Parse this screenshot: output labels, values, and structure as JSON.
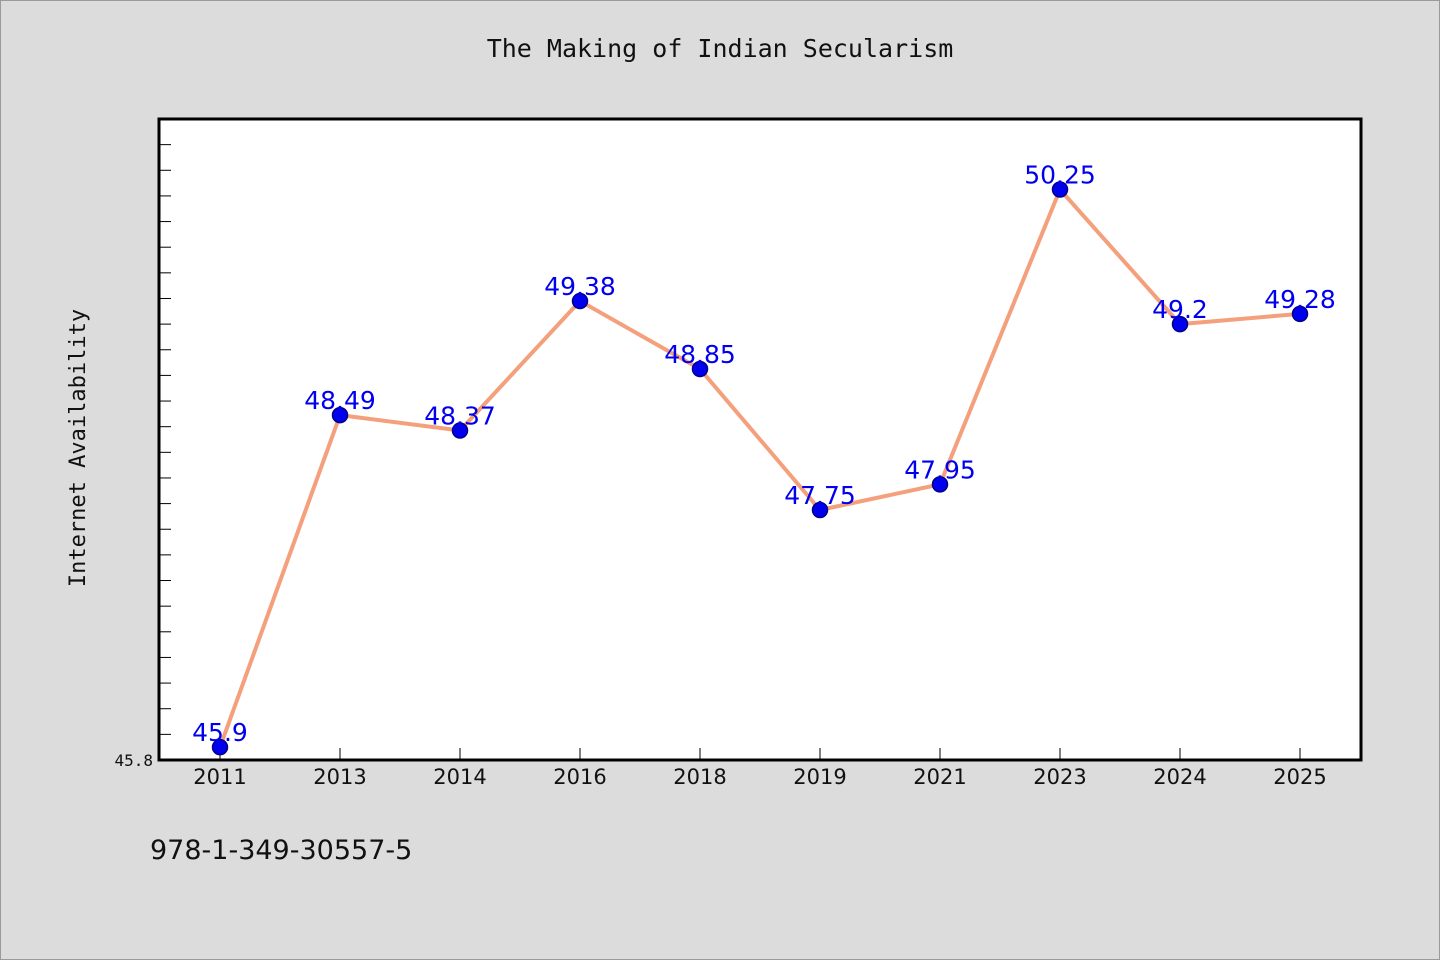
{
  "chart_data": {
    "type": "line",
    "title": "The Making of Indian Secularism",
    "xlabel": "",
    "ylabel": "Internet Availability",
    "categories": [
      "2011",
      "2013",
      "2014",
      "2016",
      "2018",
      "2019",
      "2021",
      "2023",
      "2024",
      "2025"
    ],
    "values": [
      45.9,
      48.49,
      48.37,
      49.38,
      48.85,
      47.75,
      47.95,
      50.25,
      49.2,
      49.28
    ],
    "data_labels": [
      "45.9",
      "48.49",
      "48.37",
      "49.38",
      "48.85",
      "47.75",
      "47.95",
      "50.25",
      "49.2",
      "49.28"
    ],
    "ylim": [
      45.8,
      50.8
    ],
    "y_tick_labels": [
      "45.8"
    ],
    "grid": false,
    "legend": "none",
    "colors": {
      "line": "#f4a07c",
      "marker": "#0000ee",
      "marker_edge": "#00008b",
      "data_label": "#0000ee",
      "axis": "#000000",
      "background": "#dcdcdc",
      "plot_background": "#ffffff"
    }
  },
  "footer": {
    "isbn": "978-1-349-30557-5"
  }
}
